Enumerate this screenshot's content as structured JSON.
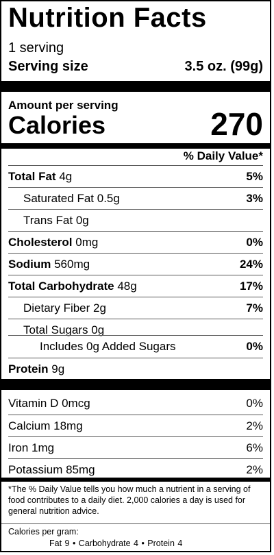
{
  "title": "Nutrition Facts",
  "servings": "1 serving",
  "serving_size": {
    "label": "Serving size",
    "value": "3.5 oz. (99g)"
  },
  "amount_per_serving": "Amount per serving",
  "calories": {
    "label": "Calories",
    "value": "270"
  },
  "daily_value_header": "% Daily Value*",
  "nutrients": [
    {
      "name": "Total Fat",
      "amount": "4g",
      "dv": "5%"
    },
    {
      "name": "Saturated Fat",
      "amount": "0.5g",
      "dv": "3%"
    },
    {
      "name": "Trans Fat",
      "amount": "0g",
      "dv": ""
    },
    {
      "name": "Cholesterol",
      "amount": "0mg",
      "dv": "0%"
    },
    {
      "name": "Sodium",
      "amount": "560mg",
      "dv": "24%"
    },
    {
      "name": "Total Carbohydrate",
      "amount": "48g",
      "dv": "17%"
    },
    {
      "name": "Dietary Fiber",
      "amount": "2g",
      "dv": "7%"
    },
    {
      "name": "Total Sugars",
      "amount": "0g",
      "dv": ""
    },
    {
      "name": "Includes 0g Added Sugars",
      "amount": "",
      "dv": "0%"
    },
    {
      "name": "Protein",
      "amount": "9g",
      "dv": ""
    }
  ],
  "vitamins": [
    {
      "name": "Vitamin D 0mcg",
      "dv": "0%"
    },
    {
      "name": "Calcium 18mg",
      "dv": "2%"
    },
    {
      "name": "Iron 1mg",
      "dv": "6%"
    },
    {
      "name": "Potassium 85mg",
      "dv": "2%"
    }
  ],
  "footnote": "*The % Daily Value tells you how much a nutrient in a serving of food contributes to a daily diet. 2,000 calories a day is used for general nutrition advice.",
  "calories_per_gram": {
    "label": "Calories per gram:",
    "line": "Fat 9  •  Carbohydrate 4  •  Protein 4"
  }
}
